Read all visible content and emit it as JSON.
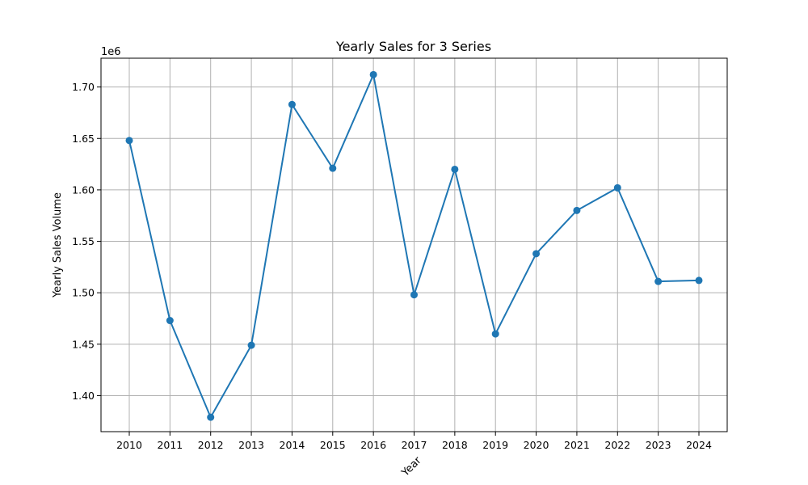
{
  "chart_data": {
    "type": "line",
    "title": "Yearly Sales for 3 Series",
    "xlabel": "Year",
    "ylabel": "Yearly Sales Volume",
    "y_multiplier_label": "1e6",
    "grid": true,
    "x": [
      "2010",
      "2011",
      "2012",
      "2013",
      "2014",
      "2015",
      "2016",
      "2017",
      "2018",
      "2019",
      "2020",
      "2021",
      "2022",
      "2023",
      "2024"
    ],
    "series": [
      {
        "values": [
          1648000,
          1473000,
          1379000,
          1449000,
          1683000,
          1621000,
          1712000,
          1498000,
          1620000,
          1460000,
          1538000,
          1580000,
          1602000,
          1511000,
          1512000
        ],
        "color": "#1f77b4"
      }
    ],
    "ylim": [
      1365000,
      1728000
    ],
    "yticks": [
      1400000,
      1450000,
      1500000,
      1550000,
      1600000,
      1650000,
      1700000
    ],
    "ytick_labels": [
      "1.40",
      "1.45",
      "1.50",
      "1.55",
      "1.60",
      "1.65",
      "1.70"
    ]
  }
}
